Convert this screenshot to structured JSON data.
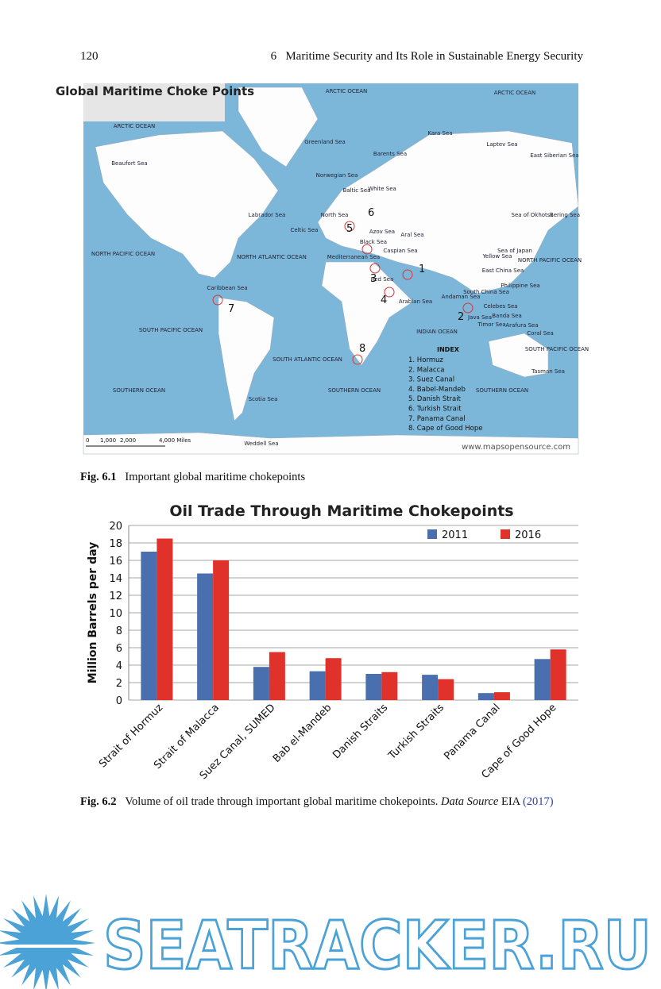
{
  "header": {
    "page_number": "120",
    "running_title": "6   Maritime Security and Its Role in Sustainable Energy Security"
  },
  "map": {
    "title": "Global Maritime Choke Points",
    "labels": [
      "ARCTIC OCEAN",
      "ARCTIC OCEAN",
      "ARCTIC OCEAN",
      "Greenland Sea",
      "Kara Sea",
      "Laptev Sea",
      "East Siberian Sea",
      "Barents Sea",
      "Beaufort Sea",
      "Norwegian Sea",
      "White Sea",
      "Baltic Sea",
      "Labrador Sea",
      "North Sea",
      "Sea of Okhotsk",
      "Bering Sea",
      "Celtic Sea",
      "Azov Sea",
      "Aral Sea",
      "Black Sea",
      "Caspian Sea",
      "NORTH PACIFIC OCEAN",
      "NORTH ATLANTIC OCEAN",
      "Mediterranean Sea",
      "Yellow Sea",
      "Sea of Japan",
      "NORTH PACIFIC OCEAN",
      "Red Sea",
      "East China Sea",
      "Philippine Sea",
      "Caribbean Sea",
      "South China Sea",
      "Andaman Sea",
      "Arabian Sea",
      "Celebes Sea",
      "Banda Sea",
      "Java Sea",
      "Timor Sea",
      "Arafura Sea",
      "Coral Sea",
      "SOUTH PACIFIC OCEAN",
      "INDIAN OCEAN",
      "SOUTH PACIFIC OCEAN",
      "SOUTH ATLANTIC OCEAN",
      "Tasman Sea",
      "SOUTHERN OCEAN",
      "Scotia Sea",
      "SOUTHERN OCEAN",
      "SOUTHERN OCEAN",
      "Weddell Sea"
    ],
    "markers": [
      "1",
      "2",
      "3",
      "4",
      "5",
      "6",
      "7",
      "8"
    ],
    "index_title": "INDEX",
    "index": [
      "1.  Hormuz",
      "2.  Malacca",
      "3.  Suez Canal",
      "4.  Babel-Mandeb",
      "5.  Danish Strait",
      "6.  Turkish Strait",
      "7.  Panama Canal",
      "8.  Cape of Good Hope"
    ],
    "scale": [
      "0",
      "1,000",
      "2,000",
      "4,000 Miles"
    ],
    "source": "www.mapsopensource.com"
  },
  "figure1_caption": {
    "label": "Fig. 6.1",
    "text": "Important global maritime chokepoints"
  },
  "chart_data": {
    "type": "bar",
    "title": "Oil Trade Through Maritime Chokepoints",
    "y_label": "Million Barrels per day",
    "categories": [
      "Strait of Hormuz",
      "Strait of Malacca",
      "Suez Canal, SUMED",
      "Bab el-Mandeb",
      "Danish Straits",
      "Turkish Straits",
      "Panama Canal",
      "Cape of Good Hope"
    ],
    "series": [
      {
        "name": "2011",
        "color": "#4a6fae",
        "values": [
          17,
          14.5,
          3.8,
          3.3,
          3.0,
          2.9,
          0.8,
          4.7
        ]
      },
      {
        "name": "2016",
        "color": "#e0312a",
        "values": [
          18.5,
          16,
          5.5,
          4.8,
          3.2,
          2.4,
          0.9,
          5.8
        ]
      }
    ],
    "ylim": [
      0,
      20
    ],
    "yticks": [
      0,
      2,
      4,
      6,
      8,
      10,
      12,
      14,
      16,
      18,
      20
    ],
    "grid": true,
    "legend": "top-right"
  },
  "figure2_caption": {
    "label": "Fig. 6.2",
    "text": "Volume of oil trade through important global maritime chokepoints.",
    "source_label": "Data Source",
    "source": "EIA",
    "year": "(2017)"
  },
  "watermark": "SEATRACKER.RU"
}
